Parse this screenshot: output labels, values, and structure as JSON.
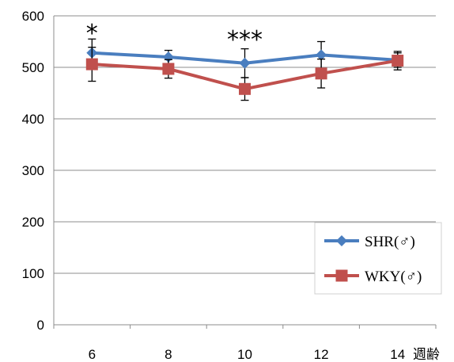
{
  "chart_data": {
    "type": "line",
    "x": [
      6,
      8,
      10,
      12,
      14
    ],
    "xlabel": "週齢",
    "ylabel": "",
    "ylim": [
      0,
      600
    ],
    "yticks": [
      0,
      100,
      200,
      300,
      400,
      500,
      600
    ],
    "grid": "horizontal",
    "legend_position": "bottom-right",
    "series": [
      {
        "name": "SHR(♂)",
        "color": "#4a7ebf",
        "marker": "diamond",
        "values": [
          528,
          520,
          508,
          524,
          514
        ],
        "error": [
          27,
          13,
          28,
          26,
          14
        ]
      },
      {
        "name": "WKY(♂)",
        "color": "#c0504d",
        "marker": "square",
        "values": [
          506,
          497,
          458,
          488,
          513
        ],
        "error": [
          33,
          18,
          22,
          28,
          18
        ]
      }
    ],
    "annotations": [
      {
        "x": 6,
        "text": "*"
      },
      {
        "x": 10,
        "text": "***"
      }
    ]
  }
}
